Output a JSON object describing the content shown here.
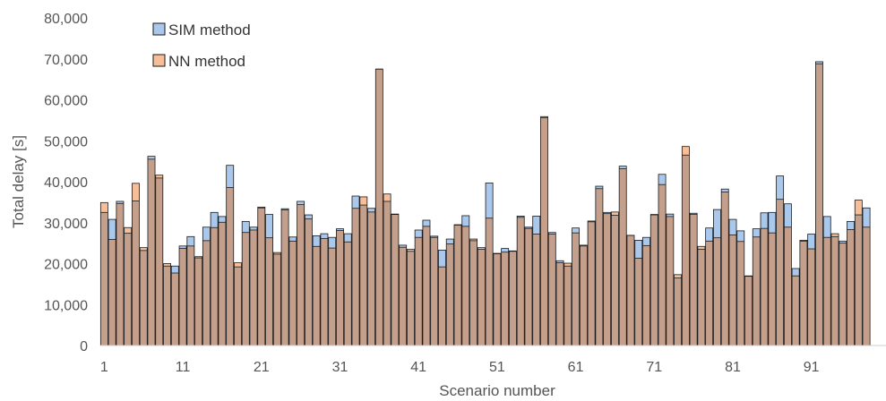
{
  "chart_data": {
    "type": "bar",
    "xlabel": "Scenario number",
    "ylabel": "Total delay [s]",
    "ylim": [
      0,
      80000
    ],
    "yticks": [
      0,
      10000,
      20000,
      30000,
      40000,
      50000,
      60000,
      70000,
      80000
    ],
    "ytick_labels": [
      "0",
      "10,000",
      "20,000",
      "30,000",
      "40,000",
      "50,000",
      "60,000",
      "70,000",
      "80,000"
    ],
    "xtick_labels": [
      "1",
      "11",
      "21",
      "31",
      "41",
      "51",
      "61",
      "71",
      "81",
      "91"
    ],
    "xtick_positions": [
      1,
      11,
      21,
      31,
      41,
      51,
      61,
      71,
      81,
      91
    ],
    "grid": false,
    "legend_position": "top-left",
    "colors": {
      "sim": "#a9c8eb",
      "nn": "#f6bf99",
      "overlap": "#c4a08c",
      "edge": "#1a1a1a"
    },
    "categories": [
      1,
      2,
      3,
      4,
      5,
      6,
      7,
      8,
      9,
      10,
      11,
      12,
      13,
      14,
      15,
      16,
      17,
      18,
      19,
      20,
      21,
      22,
      23,
      24,
      25,
      26,
      27,
      28,
      29,
      30,
      31,
      32,
      33,
      34,
      35,
      36,
      37,
      38,
      39,
      40,
      41,
      42,
      43,
      44,
      45,
      46,
      47,
      48,
      49,
      50,
      51,
      52,
      53,
      54,
      55,
      56,
      57,
      58,
      59,
      60,
      61,
      62,
      63,
      64,
      65,
      66,
      67,
      68,
      69,
      70,
      71,
      72,
      73,
      74,
      75,
      76,
      77,
      78,
      79,
      80,
      81,
      82,
      83,
      84,
      85,
      86,
      87,
      88,
      89,
      90,
      91,
      92,
      93,
      94,
      95,
      96,
      97,
      98,
      99,
      100
    ],
    "series": [
      {
        "name": "SIM method",
        "values": [
          32500,
          30800,
          35200,
          27400,
          35300,
          23200,
          46200,
          40900,
          19400,
          19400,
          24300,
          26600,
          21400,
          28900,
          32500,
          31500,
          44000,
          19200,
          30300,
          28900,
          33600,
          32000,
          22300,
          33400,
          26500,
          35200,
          31900,
          26800,
          27300,
          26400,
          28500,
          27300,
          36500,
          34300,
          33500,
          67500,
          35200,
          32000,
          24500,
          23000,
          28200,
          30600,
          26700,
          23300,
          26000,
          29500,
          31700,
          25600,
          23500,
          39700,
          22500,
          23700,
          23000,
          31600,
          28900,
          31600,
          55900,
          27600,
          20700,
          19400,
          28700,
          24300,
          30400,
          38900,
          32500,
          31800,
          43800,
          26900,
          25700,
          26400,
          31900,
          41800,
          32100,
          16500,
          46500,
          32300,
          23500,
          28700,
          33200,
          38200,
          30800,
          28000,
          17000,
          28500,
          32400,
          32500,
          41400,
          34600,
          18800,
          25700,
          27200,
          69300,
          31500,
          26600,
          25500,
          30300,
          31900,
          33600,
          0,
          0
        ]
      },
      {
        "name": "NN method",
        "values": [
          34900,
          25900,
          34700,
          28800,
          39600,
          23900,
          45500,
          41600,
          20000,
          17700,
          23700,
          24300,
          21700,
          25600,
          28800,
          30100,
          38600,
          20200,
          27600,
          28200,
          33800,
          26300,
          22700,
          33100,
          25500,
          34400,
          30900,
          24200,
          26100,
          23800,
          28100,
          25300,
          33500,
          36300,
          32600,
          67500,
          37000,
          32100,
          24000,
          23500,
          26400,
          29100,
          26400,
          19200,
          24800,
          29400,
          29100,
          26000,
          23900,
          31100,
          22400,
          22800,
          23100,
          31300,
          28600,
          27200,
          55600,
          27200,
          20200,
          20100,
          27500,
          24500,
          30200,
          38300,
          32200,
          32600,
          43200,
          26900,
          21300,
          24400,
          32000,
          39300,
          31500,
          17300,
          48600,
          32000,
          24200,
          25500,
          26300,
          37500,
          27000,
          25400,
          16900,
          26500,
          28600,
          27500,
          35700,
          28900,
          17000,
          25500,
          23600,
          68800,
          26400,
          27300,
          25000,
          28300,
          35500,
          28900,
          0,
          0
        ]
      }
    ]
  },
  "legend": {
    "items": [
      {
        "label": "SIM method",
        "color": "#a9c8eb"
      },
      {
        "label": "NN method",
        "color": "#f6bf99"
      }
    ]
  }
}
